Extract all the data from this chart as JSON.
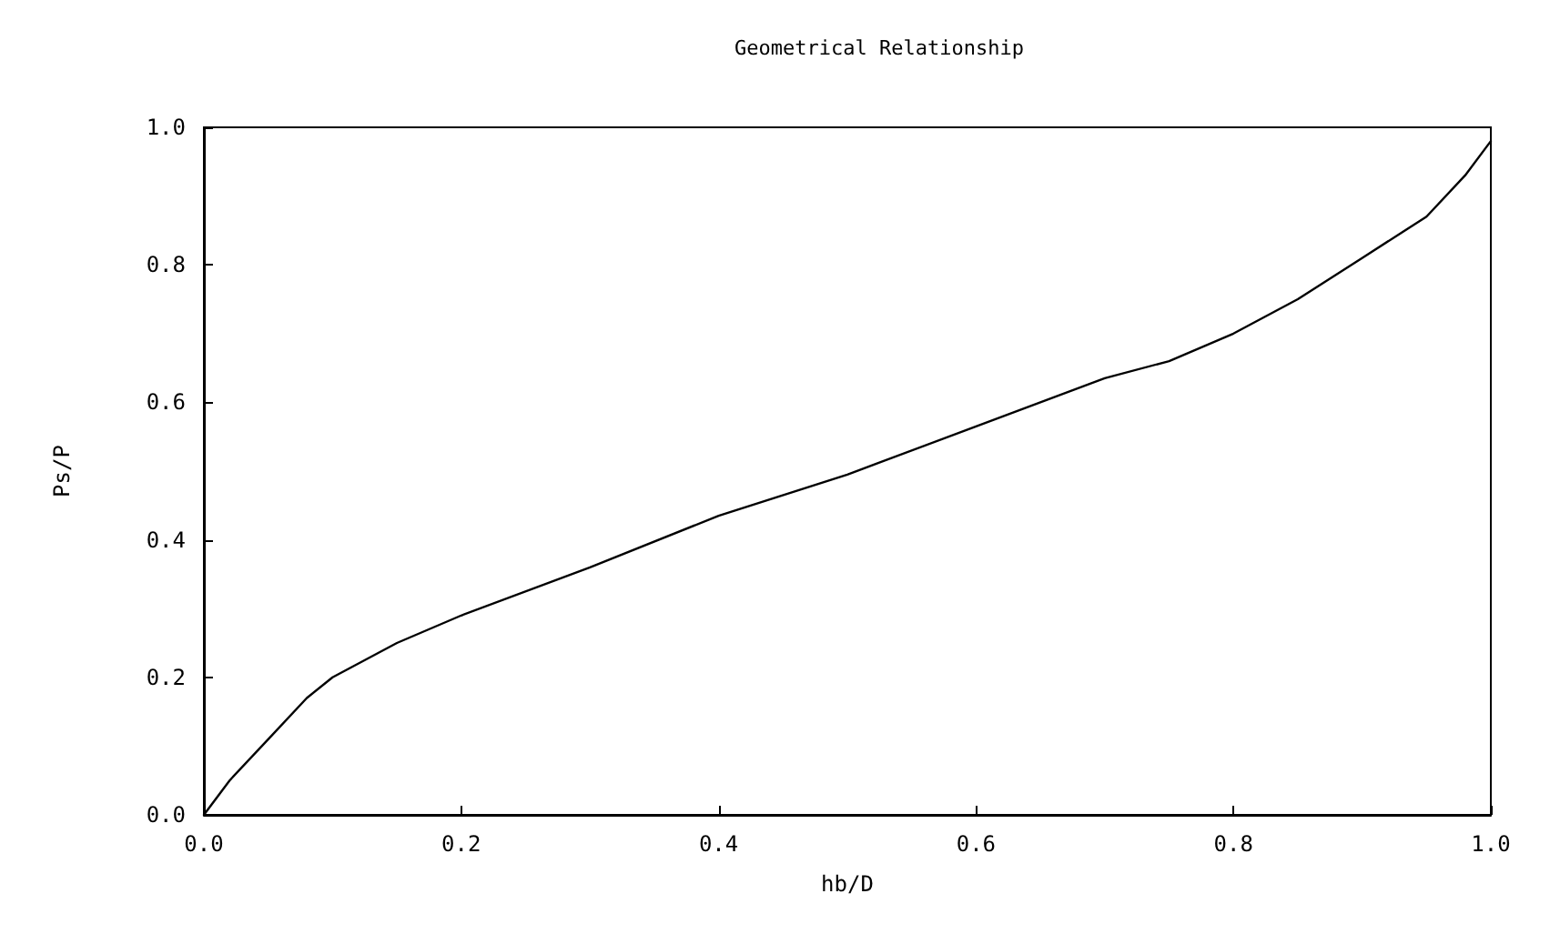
{
  "chart_data": {
    "type": "line",
    "title": "Geometrical Relationship",
    "xlabel": "hb/D",
    "ylabel": "Ps/P",
    "x": [
      0,
      0.02,
      0.05,
      0.08,
      0.1,
      0.15,
      0.2,
      0.3,
      0.4,
      0.5,
      0.6,
      0.7,
      0.75,
      0.8,
      0.85,
      0.9,
      0.95,
      0.98,
      1.0
    ],
    "series": [
      {
        "color": "#000000",
        "values": [
          0,
          0.05,
          0.11,
          0.17,
          0.2,
          0.25,
          0.29,
          0.36,
          0.435,
          0.495,
          0.565,
          0.635,
          0.66,
          0.7,
          0.75,
          0.81,
          0.87,
          0.93,
          0.98
        ]
      }
    ],
    "xlim": [
      0,
      1
    ],
    "ylim": [
      0,
      1
    ],
    "xticks": [
      {
        "value": 0,
        "label": "0.0"
      },
      0.2,
      0.4,
      0.6,
      0.8,
      {
        "value": 1,
        "label": "1.0"
      }
    ],
    "yticks": [
      {
        "value": 0,
        "label": "0.0"
      },
      0.2,
      0.4,
      0.6,
      0.8,
      {
        "value": 1,
        "label": "1.0"
      }
    ],
    "grid": false,
    "marker": "none",
    "line_style": "solid"
  }
}
